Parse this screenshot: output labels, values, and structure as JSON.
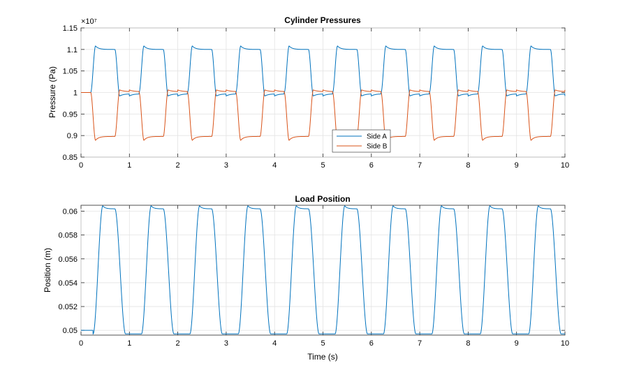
{
  "chart_data": [
    {
      "type": "line",
      "title": "Cylinder Pressures",
      "xlabel": "",
      "ylabel": "Pressure (Pa)",
      "y_exponent_label": "×10⁷",
      "xlim": [
        0,
        10
      ],
      "ylim": [
        0.85,
        1.15
      ],
      "x_ticks": [
        0,
        1,
        2,
        3,
        4,
        5,
        6,
        7,
        8,
        9,
        10
      ],
      "y_ticks": [
        0.85,
        0.9,
        0.95,
        1,
        1.05,
        1.1,
        1.15
      ],
      "y_tick_labels": [
        "0.85",
        "0.9",
        "0.95",
        "1",
        "1.05",
        "1.1",
        "1.15"
      ],
      "grid": true,
      "legend": "bottom-center",
      "period_s": 1,
      "series": [
        {
          "name": "Side A",
          "color": "#0072BD",
          "baseline": 1.0,
          "high": 1.1,
          "peak": 1.108,
          "low_undershoot": 0.992,
          "low_settle": 0.997
        },
        {
          "name": "Side B",
          "color": "#D95319",
          "baseline": 1.0,
          "low": 0.898,
          "trough": 0.889,
          "high_overshoot": 1.006,
          "high_settle": 1.002
        }
      ]
    },
    {
      "type": "line",
      "title": "Load Position",
      "xlabel": "Time (s)",
      "ylabel": "Position (m)",
      "xlim": [
        0,
        10
      ],
      "ylim": [
        0.0496,
        0.0605
      ],
      "x_ticks": [
        0,
        1,
        2,
        3,
        4,
        5,
        6,
        7,
        8,
        9,
        10
      ],
      "y_ticks": [
        0.05,
        0.052,
        0.054,
        0.056,
        0.058,
        0.06
      ],
      "y_tick_labels": [
        "0.05",
        "0.052",
        "0.054",
        "0.056",
        "0.058",
        "0.06"
      ],
      "grid": true,
      "period_s": 1,
      "series": [
        {
          "name": "Position",
          "color": "#0072BD",
          "low": 0.0497,
          "initial": 0.05,
          "high_peak": 0.06045,
          "high_settle": 0.0602
        }
      ]
    }
  ]
}
